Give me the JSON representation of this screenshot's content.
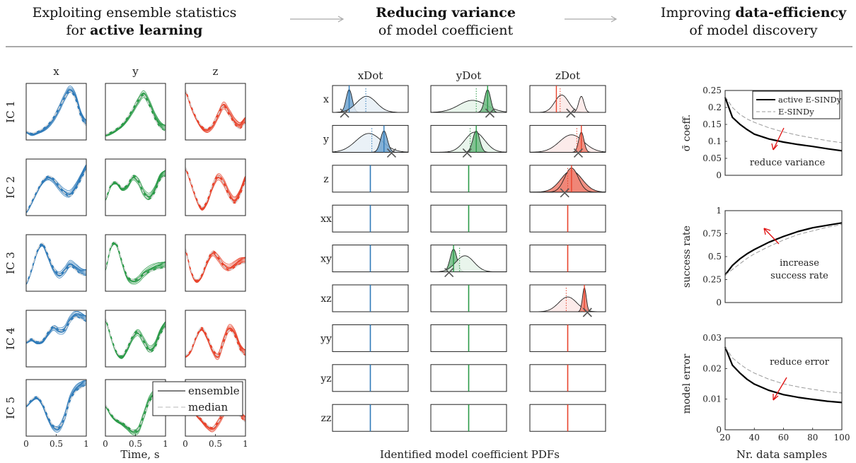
{
  "header": {
    "panel1": {
      "line1": "Exploiting ensemble statistics",
      "line2_pre": "for ",
      "line2_bold": "active learning"
    },
    "panel2": {
      "line1_bold": "Reducing variance",
      "line2": "of model coefficient"
    },
    "panel3": {
      "line1_pre": "Improving ",
      "line1_bold": "data-efficiency",
      "line2": "of model discovery"
    }
  },
  "colors": {
    "x": "#2f7ab8",
    "y": "#2a9a48",
    "z": "#e8432c",
    "median": "#d8d8d8",
    "active": "#000000",
    "esindy": "#9a9a9a",
    "arrow": "#e01010"
  },
  "chart_data": [
    {
      "type": "line",
      "panel": "ensemble-trajectories",
      "column_labels": [
        "x",
        "y",
        "z"
      ],
      "row_labels": [
        "IC 1",
        "IC 2",
        "IC 3",
        "IC 4",
        "IC 5"
      ],
      "xlabel": "Time, s",
      "x_ticks": [
        "0",
        "0.5",
        "1"
      ],
      "xlim": [
        0,
        1
      ],
      "legend": {
        "entries": [
          "ensemble",
          "median"
        ],
        "placement": "IC 5 row, y/z panels"
      },
      "median_curves": [
        [
          [
            0.16,
            0.12,
            0.15,
            0.2,
            0.28,
            0.4,
            0.56,
            0.74,
            0.86,
            0.72,
            0.4,
            0.25
          ],
          [
            0.1,
            0.14,
            0.2,
            0.28,
            0.4,
            0.55,
            0.7,
            0.8,
            0.62,
            0.38,
            0.22,
            0.16
          ],
          [
            0.88,
            0.62,
            0.4,
            0.25,
            0.2,
            0.28,
            0.45,
            0.6,
            0.45,
            0.28,
            0.2,
            0.3
          ]
        ],
        [
          [
            0.08,
            0.25,
            0.45,
            0.62,
            0.7,
            0.65,
            0.52,
            0.4,
            0.35,
            0.45,
            0.62,
            0.8
          ],
          [
            0.3,
            0.55,
            0.6,
            0.5,
            0.55,
            0.7,
            0.62,
            0.4,
            0.3,
            0.4,
            0.62,
            0.7
          ],
          [
            0.85,
            0.6,
            0.32,
            0.15,
            0.28,
            0.55,
            0.7,
            0.58,
            0.35,
            0.22,
            0.35,
            0.6
          ]
        ],
        [
          [
            0.15,
            0.4,
            0.72,
            0.85,
            0.65,
            0.42,
            0.3,
            0.35,
            0.45,
            0.38,
            0.3,
            0.28
          ],
          [
            0.4,
            0.8,
            0.85,
            0.55,
            0.28,
            0.2,
            0.22,
            0.3,
            0.35,
            0.38,
            0.4,
            0.42
          ],
          [
            0.75,
            0.38,
            0.2,
            0.3,
            0.55,
            0.7,
            0.6,
            0.45,
            0.38,
            0.42,
            0.48,
            0.5
          ]
        ],
        [
          [
            0.45,
            0.5,
            0.45,
            0.48,
            0.62,
            0.72,
            0.65,
            0.65,
            0.8,
            0.88,
            0.85,
            0.8
          ],
          [
            0.85,
            0.55,
            0.28,
            0.2,
            0.35,
            0.55,
            0.62,
            0.45,
            0.28,
            0.32,
            0.55,
            0.7
          ],
          [
            0.2,
            0.3,
            0.55,
            0.7,
            0.55,
            0.32,
            0.2,
            0.45,
            0.65,
            0.55,
            0.3,
            0.2
          ]
        ],
        [
          [
            0.55,
            0.65,
            0.7,
            0.58,
            0.35,
            0.18,
            0.15,
            0.32,
            0.62,
            0.78,
            0.85,
            0.9
          ],
          [
            0.55,
            0.4,
            0.3,
            0.25,
            0.18,
            0.1,
            0.12,
            0.35,
            0.6,
            0.7,
            0.62,
            0.55
          ],
          [
            0.7,
            0.55,
            0.4,
            0.3,
            0.2,
            0.15,
            0.25,
            0.4,
            0.55,
            0.5,
            0.35,
            0.25
          ]
        ]
      ]
    },
    {
      "type": "area",
      "panel": "coefficient-pdfs",
      "title": "Identified model coefficient PDFs",
      "column_labels": [
        "xDot",
        "yDot",
        "zDot"
      ],
      "row_labels": [
        "x",
        "y",
        "z",
        "xx",
        "xy",
        "xz",
        "yy",
        "yz",
        "zz"
      ],
      "cells": [
        [
          {
            "type": "pdf",
            "curves": [
              {
                "mu": 0.22,
                "sd": 0.04,
                "h": 0.85,
                "fill": 1
              },
              {
                "mu": 0.45,
                "sd": 0.13,
                "h": 0.6,
                "fill": 0
              }
            ],
            "median": 0.22,
            "dotted": 0.44,
            "cross": 0.16
          },
          {
            "type": "pdf",
            "curves": [
              {
                "mu": 0.48,
                "sd": 0.17,
                "h": 0.7,
                "fill": 0
              },
              {
                "mu": 0.68,
                "sd": 0.045,
                "h": 0.8,
                "fill": 1
              }
            ],
            "median": 0.68,
            "dotted": 0.52,
            "cross": 0.78
          },
          {
            "type": "line",
            "pos": 0.5
          },
          {
            "type": "line",
            "pos": 0.5
          },
          {
            "type": "line",
            "pos": 0.5
          },
          {
            "type": "line",
            "pos": 0.5
          },
          {
            "type": "line",
            "pos": 0.5
          },
          {
            "type": "line",
            "pos": 0.5
          },
          {
            "type": "line",
            "pos": 0.5
          }
        ],
        [
          {
            "type": "pdf",
            "curves": [
              {
                "mu": 0.55,
                "sd": 0.18,
                "h": 0.45,
                "fill": 0
              },
              {
                "mu": 0.75,
                "sd": 0.04,
                "h": 0.85,
                "fill": 1
              }
            ],
            "median": 0.75,
            "dotted": 0.6,
            "cross": 0.78
          },
          {
            "type": "pdf",
            "curves": [
              {
                "mu": 0.58,
                "sd": 0.13,
                "h": 0.75,
                "fill": 0
              },
              {
                "mu": 0.6,
                "sd": 0.045,
                "h": 0.8,
                "fill": 1
              }
            ],
            "median": 0.6,
            "dotted": 0.52,
            "cross": 0.48
          },
          {
            "type": "line",
            "pos": 0.5
          },
          {
            "type": "line",
            "pos": 0.5
          },
          {
            "type": "pdf",
            "curves": [
              {
                "mu": 0.3,
                "sd": 0.045,
                "h": 0.85,
                "fill": 1
              },
              {
                "mu": 0.45,
                "sd": 0.12,
                "h": 0.6,
                "fill": 0
              }
            ],
            "median": 0.3,
            "dotted": 0.38,
            "cross": 0.24
          },
          {
            "type": "line",
            "pos": 0.5
          },
          {
            "type": "line",
            "pos": 0.5
          },
          {
            "type": "line",
            "pos": 0.5
          },
          {
            "type": "line",
            "pos": 0.5
          }
        ],
        [
          {
            "type": "pdf",
            "curves": [
              {
                "mu": 0.42,
                "sd": 0.09,
                "h": 0.65,
                "fill": 0
              },
              {
                "mu": 0.68,
                "sd": 0.035,
                "h": 0.6,
                "fill": 0
              }
            ],
            "median": 0.35,
            "dotted": 0.4,
            "cross": 0.54
          },
          {
            "type": "pdf",
            "curves": [
              {
                "mu": 0.55,
                "sd": 0.16,
                "h": 0.65,
                "fill": 0
              },
              {
                "mu": 0.68,
                "sd": 0.035,
                "h": 0.75,
                "fill": 1
              }
            ],
            "median": 0.68,
            "dotted": 0.62,
            "cross": 0.64
          },
          {
            "type": "pdf",
            "curves": [
              {
                "mu": 0.55,
                "sd": 0.14,
                "h": 0.8,
                "fill": 1
              },
              {
                "mu": 0.55,
                "sd": 0.09,
                "h": 0.9,
                "fill": 1
              }
            ],
            "median": 0.55,
            "dotted": 0.5,
            "cross": 0.46
          },
          {
            "type": "line",
            "pos": 0.5
          },
          {
            "type": "line",
            "pos": 0.5
          },
          {
            "type": "pdf",
            "curves": [
              {
                "mu": 0.5,
                "sd": 0.12,
                "h": 0.55,
                "fill": 0
              },
              {
                "mu": 0.72,
                "sd": 0.025,
                "h": 0.9,
                "fill": 1
              }
            ],
            "median": 0.72,
            "dotted": 0.48,
            "cross": 0.76
          },
          {
            "type": "line",
            "pos": 0.5
          },
          {
            "type": "line",
            "pos": 0.5
          },
          {
            "type": "line",
            "pos": 0.5
          }
        ]
      ]
    },
    {
      "type": "line",
      "panel": "sigma-coefficient",
      "ylabel": "σ̄ coeff.",
      "xlim": [
        20,
        100
      ],
      "ylim": [
        0,
        0.25
      ],
      "y_ticks": [
        "0",
        "0.05",
        "0.1",
        "0.15",
        "0.2",
        "0.25"
      ],
      "x": [
        20,
        25,
        30,
        35,
        40,
        50,
        60,
        70,
        80,
        90,
        100
      ],
      "series": [
        {
          "name": "active E-SINDy",
          "values": [
            0.23,
            0.17,
            0.15,
            0.135,
            0.122,
            0.108,
            0.098,
            0.09,
            0.084,
            0.078,
            0.073
          ]
        },
        {
          "name": "E-SINDy",
          "values": [
            0.232,
            0.2,
            0.18,
            0.166,
            0.156,
            0.14,
            0.128,
            0.118,
            0.11,
            0.102,
            0.096
          ]
        }
      ],
      "legend_placement": "top-right",
      "annotation": "reduce variance"
    },
    {
      "type": "line",
      "panel": "success-rate",
      "ylabel": "success rate",
      "xlim": [
        20,
        100
      ],
      "ylim": [
        0,
        1
      ],
      "y_ticks": [
        "0",
        "0.25",
        "0.5",
        "0.75",
        "1"
      ],
      "x": [
        20,
        25,
        30,
        35,
        40,
        50,
        60,
        70,
        80,
        90,
        100
      ],
      "series": [
        {
          "name": "active E-SINDy",
          "values": [
            0.3,
            0.4,
            0.47,
            0.53,
            0.58,
            0.66,
            0.72,
            0.77,
            0.81,
            0.84,
            0.87
          ]
        },
        {
          "name": "E-SINDy",
          "values": [
            0.3,
            0.36,
            0.42,
            0.48,
            0.53,
            0.61,
            0.68,
            0.74,
            0.78,
            0.82,
            0.85
          ]
        }
      ],
      "annotation": [
        "increase",
        "success rate"
      ]
    },
    {
      "type": "line",
      "panel": "model-error",
      "ylabel": "model error",
      "xlabel": "Nr. data samples",
      "xlim": [
        20,
        100
      ],
      "ylim": [
        0,
        0.03
      ],
      "y_ticks": [
        "0",
        "0.01",
        "0.02",
        "0.03"
      ],
      "x_ticks": [
        "20",
        "40",
        "60",
        "80",
        "100"
      ],
      "x": [
        20,
        25,
        30,
        35,
        40,
        50,
        60,
        70,
        80,
        90,
        100
      ],
      "series": [
        {
          "name": "active E-SINDy",
          "values": [
            0.027,
            0.021,
            0.0185,
            0.0165,
            0.015,
            0.013,
            0.0115,
            0.0105,
            0.0098,
            0.0093,
            0.009
          ]
        },
        {
          "name": "E-SINDy",
          "values": [
            0.027,
            0.0235,
            0.0215,
            0.0198,
            0.0185,
            0.0165,
            0.015,
            0.014,
            0.0132,
            0.0125,
            0.012
          ]
        }
      ],
      "annotation": "reduce error"
    }
  ]
}
